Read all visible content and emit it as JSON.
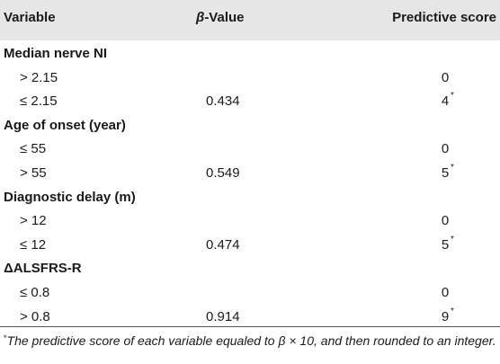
{
  "headers": {
    "variable": "Variable",
    "beta_symbol": "β",
    "beta_suffix": "-Value",
    "score": "Predictive score"
  },
  "groups": [
    {
      "title": "Median nerve NI",
      "rows": [
        {
          "label": "> 2.15",
          "beta": "",
          "score": "0",
          "mark": ""
        },
        {
          "label": "≤ 2.15",
          "beta": "0.434",
          "score": "4",
          "mark": "*"
        }
      ]
    },
    {
      "title": "Age of onset (year)",
      "rows": [
        {
          "label": "≤ 55",
          "beta": "",
          "score": "0",
          "mark": ""
        },
        {
          "label": "> 55",
          "beta": "0.549",
          "score": "5",
          "mark": "*"
        }
      ]
    },
    {
      "title": "Diagnostic delay (m)",
      "rows": [
        {
          "label": "> 12",
          "beta": "",
          "score": "0",
          "mark": ""
        },
        {
          "label": "≤ 12",
          "beta": "0.474",
          "score": "5",
          "mark": "*"
        }
      ]
    },
    {
      "title": "ΔALSFRS-R",
      "rows": [
        {
          "label": "≤ 0.8",
          "beta": "",
          "score": "0",
          "mark": ""
        },
        {
          "label": "> 0.8",
          "beta": "0.914",
          "score": "9",
          "mark": "*"
        }
      ]
    }
  ],
  "footnote": {
    "mark": "*",
    "text": "The predictive score of each variable equaled to β × 10, and then rounded to an integer."
  }
}
